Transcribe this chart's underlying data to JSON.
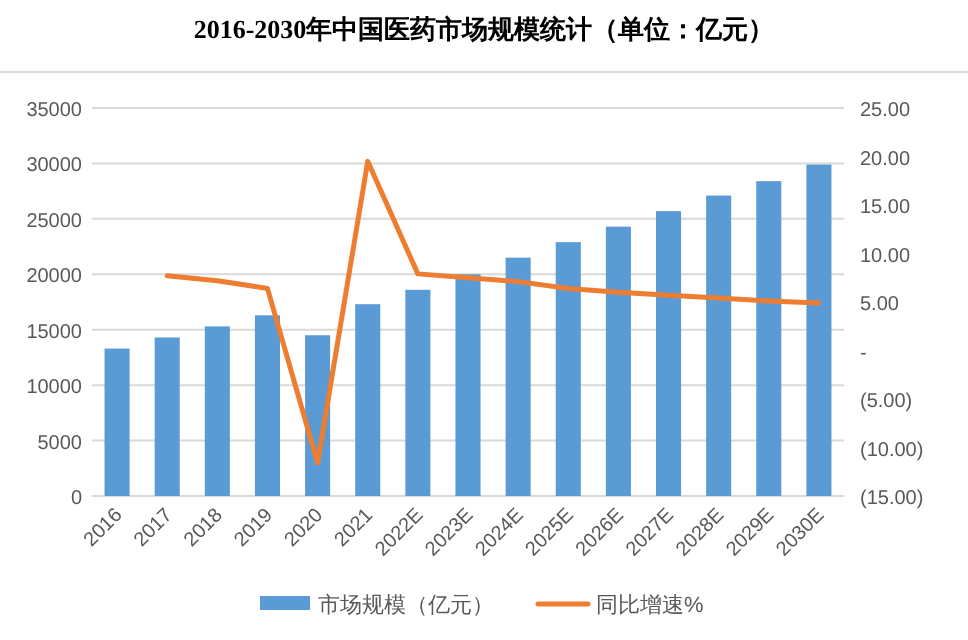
{
  "chart_data": {
    "type": "bar",
    "title": "2016-2030年中国医药市场规模统计（单位：亿元）",
    "categories": [
      "2016",
      "2017",
      "2018",
      "2019",
      "2020",
      "2021",
      "2022E",
      "2023E",
      "2024E",
      "2025E",
      "2026E",
      "2027E",
      "2028E",
      "2029E",
      "2030E"
    ],
    "series": [
      {
        "name": "市场规模（亿元）",
        "color": "#5b9bd5",
        "values": [
          13300,
          14300,
          15300,
          16300,
          14500,
          17300,
          18600,
          20000,
          21500,
          22900,
          24300,
          25700,
          27100,
          28400,
          29900
        ]
      },
      {
        "name": "同比增速%",
        "type": "line",
        "axis": "y2",
        "color": "#ed7d31",
        "values": [
          null,
          7.7,
          7.2,
          6.4,
          -11.6,
          19.5,
          7.9,
          7.5,
          7.1,
          6.4,
          6.0,
          5.7,
          5.4,
          5.1,
          4.9
        ]
      }
    ],
    "ylim": [
      0,
      35000
    ],
    "yticks": [
      0,
      5000,
      10000,
      15000,
      20000,
      25000,
      30000,
      35000
    ],
    "y2lim": [
      -15,
      25
    ],
    "y2ticks": [
      {
        "value": -15,
        "label": "(15.00)"
      },
      {
        "value": -10,
        "label": "(10.00)"
      },
      {
        "value": -5,
        "label": "(5.00)"
      },
      {
        "value": 0,
        "label": "-"
      },
      {
        "value": 5,
        "label": "5.00"
      },
      {
        "value": 10,
        "label": "10.00"
      },
      {
        "value": 15,
        "label": "15.00"
      },
      {
        "value": 20,
        "label": "20.00"
      },
      {
        "value": 25,
        "label": "25.00"
      }
    ],
    "grid": "y",
    "legend": "bottom"
  }
}
